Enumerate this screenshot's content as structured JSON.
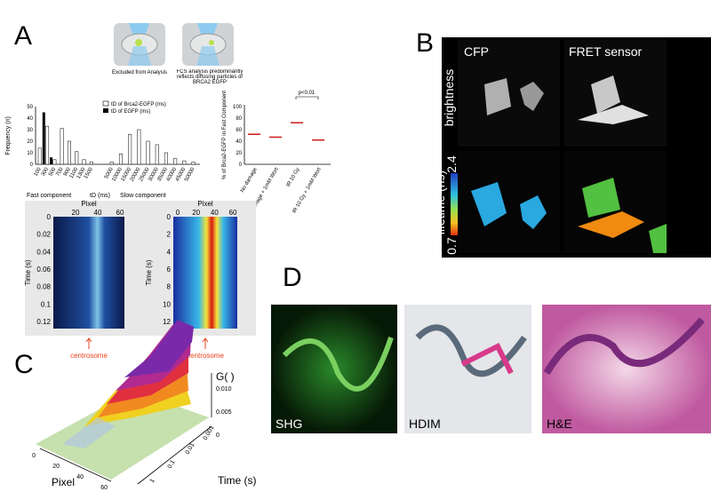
{
  "panelA": {
    "label": "A",
    "caption_left": "Excluded from Analysis",
    "caption_right": "FCS analysis predominantly reflects diffusing particles of BRCA2 EGFP",
    "histogram": {
      "legend": [
        "tD of Brca2-EGFP (ms)",
        "tD of EGFP (ms)"
      ],
      "y_label": "Frequency (n)",
      "yticks": [
        "0",
        "10",
        "20",
        "30",
        "40",
        "50"
      ],
      "categories": [
        "100",
        "300",
        "500",
        "700",
        "900",
        "1100",
        "1300",
        "1500",
        "5000",
        "10000",
        "15000",
        "20000",
        "25000",
        "30000",
        "35000",
        "40000",
        "45000",
        "50000"
      ],
      "brca2_values": [
        14,
        33,
        4,
        31,
        20,
        11,
        4,
        2,
        2,
        9,
        26,
        30,
        20,
        17,
        10,
        5,
        3,
        2
      ],
      "egfp_values": [
        0,
        45,
        6,
        0,
        0,
        0,
        0,
        0,
        0,
        0,
        0,
        0,
        0,
        0,
        0,
        0,
        0,
        0
      ],
      "fast_label": "Fast component",
      "x_label": "tD  (ms)",
      "slow_label": "Slow component"
    },
    "dotplot": {
      "y_label": "% of Brca2-EGFP in Fast Component",
      "yticks": [
        "0",
        "20",
        "40",
        "60",
        "80",
        "100"
      ],
      "categories": [
        "No damage",
        "No damage + 1mM Wort",
        "IR 10 Gy",
        "IR 10 Gy + 1mM Wort"
      ],
      "means": [
        52,
        47,
        72,
        42
      ],
      "annotation": "p<0.01"
    }
  },
  "panelB": {
    "label": "B",
    "columns": [
      "CFP",
      "FRET sensor"
    ],
    "rows": [
      "brightness",
      "lifetime (ns)"
    ],
    "scale_max": "2.4",
    "scale_min": "0.7"
  },
  "kymographs": {
    "x_label": "Pixel",
    "y_label": "Time (s)",
    "left_xticks": [
      "20",
      "40",
      "60"
    ],
    "left_yticks": [
      "0",
      "0.02",
      "0.04",
      "0.06",
      "0.08",
      "0.1",
      "0.12"
    ],
    "right_xticks": [
      "0",
      "20",
      "40",
      "60"
    ],
    "right_yticks": [
      "0",
      "2",
      "4",
      "6",
      "8",
      "10",
      "12"
    ],
    "marker": "centrosome"
  },
  "panelC": {
    "label": "C",
    "z_label": "G( )",
    "zticks": [
      "0.010",
      "0.005",
      "0"
    ],
    "time_label": "Time (s)",
    "time_ticks": [
      "0.001",
      "0.01",
      "0.1",
      "1"
    ],
    "pixel_label": "Pixel",
    "pixel_ticks": [
      "0",
      "20",
      "40",
      "60"
    ]
  },
  "panelD": {
    "label": "D",
    "images": [
      "SHG",
      "HDIM",
      "H&E"
    ]
  }
}
